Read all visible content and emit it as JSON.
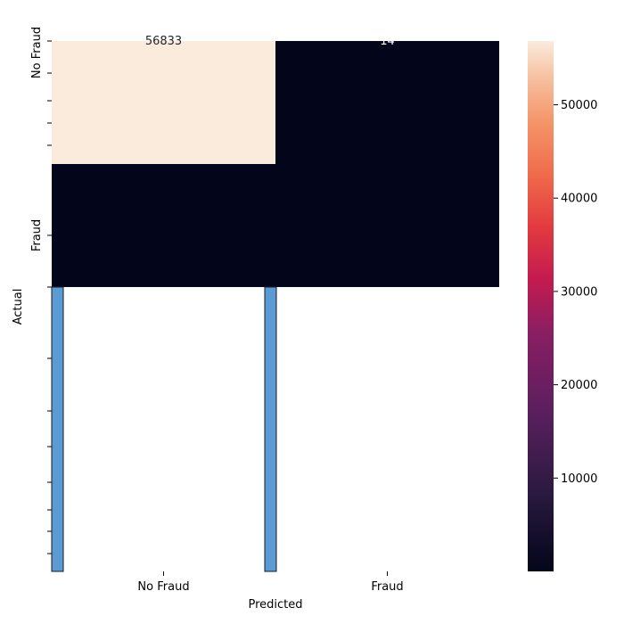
{
  "chart_data": {
    "type": "heatmap",
    "title": "",
    "xlabel": "Predicted",
    "ylabel": "Actual",
    "x_tick_labels": [
      "No Fraud",
      "Fraud"
    ],
    "y_tick_labels": [
      "No Fraud",
      "Fraud"
    ],
    "matrix": [
      [
        56833,
        14
      ],
      [
        0,
        0
      ]
    ],
    "cell_labels": [
      [
        "56833",
        "14"
      ],
      [
        "",
        ""
      ]
    ],
    "colorbar": {
      "range": [
        0,
        56833
      ],
      "ticks": [
        10000,
        20000,
        30000,
        40000,
        50000
      ],
      "tick_labels": [
        "10000",
        "20000",
        "30000",
        "40000",
        "50000"
      ]
    },
    "overlay_bars": {
      "color": "#5b9bd5",
      "positions": [
        "No Fraud",
        "Fraud"
      ]
    },
    "colors": {
      "low": "#03051a",
      "high": "#faebdd",
      "text_on_light": "#262626",
      "text_on_dark": "#ffffff"
    }
  }
}
